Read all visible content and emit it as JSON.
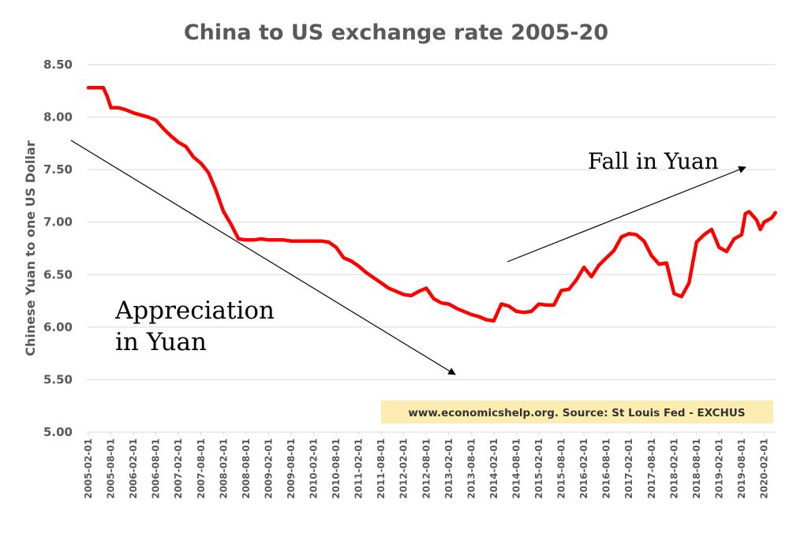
{
  "chart_data": {
    "type": "line",
    "title": "China to US exchange rate 2005-20",
    "ylabel": "Chinese Yuan to one US Dollar",
    "xlabel": "",
    "ylim": [
      5.0,
      8.5
    ],
    "yticks": [
      "5.00",
      "5.50",
      "6.00",
      "6.50",
      "7.00",
      "7.50",
      "8.00",
      "8.50"
    ],
    "xticks": [
      "2005-02-01",
      "2005-08-01",
      "2006-02-01",
      "2006-08-01",
      "2007-02-01",
      "2007-08-01",
      "2008-02-01",
      "2008-08-01",
      "2009-02-01",
      "2009-08-01",
      "2010-02-01",
      "2010-08-01",
      "2011-02-01",
      "2011-08-01",
      "2012-02-01",
      "2012-08-01",
      "2013-02-01",
      "2013-08-01",
      "2014-02-01",
      "2014-08-01",
      "2015-02-01",
      "2015-08-01",
      "2016-02-01",
      "2016-08-01",
      "2017-02-01",
      "2017-08-01",
      "2018-02-01",
      "2018-08-01",
      "2019-02-01",
      "2019-08-01",
      "2020-02-01"
    ],
    "grid": "horizontal",
    "series": [
      {
        "color": "#ff0000",
        "x": [
          "2005-02",
          "2005-04",
          "2005-06",
          "2005-07",
          "2005-08",
          "2005-10",
          "2005-12",
          "2006-02",
          "2006-04",
          "2006-06",
          "2006-08",
          "2006-10",
          "2006-12",
          "2007-02",
          "2007-04",
          "2007-06",
          "2007-08",
          "2007-10",
          "2007-12",
          "2008-02",
          "2008-04",
          "2008-06",
          "2008-08",
          "2008-10",
          "2008-12",
          "2009-02",
          "2009-04",
          "2009-06",
          "2009-08",
          "2009-10",
          "2009-12",
          "2010-02",
          "2010-04",
          "2010-06",
          "2010-08",
          "2010-10",
          "2010-12",
          "2011-02",
          "2011-04",
          "2011-06",
          "2011-08",
          "2011-10",
          "2011-12",
          "2012-02",
          "2012-04",
          "2012-06",
          "2012-08",
          "2012-10",
          "2012-12",
          "2013-02",
          "2013-04",
          "2013-06",
          "2013-08",
          "2013-10",
          "2013-12",
          "2014-02",
          "2014-04",
          "2014-06",
          "2014-08",
          "2014-10",
          "2014-12",
          "2015-02",
          "2015-04",
          "2015-06",
          "2015-08",
          "2015-10",
          "2015-12",
          "2016-02",
          "2016-04",
          "2016-06",
          "2016-08",
          "2016-10",
          "2016-12",
          "2017-02",
          "2017-04",
          "2017-06",
          "2017-08",
          "2017-10",
          "2017-12",
          "2018-02",
          "2018-04",
          "2018-06",
          "2018-08",
          "2018-10",
          "2018-12",
          "2019-02",
          "2019-04",
          "2019-06",
          "2019-08",
          "2019-09",
          "2019-10",
          "2019-12",
          "2020-01",
          "2020-02",
          "2020-04",
          "2020-05"
        ],
        "values": [
          8.28,
          8.28,
          8.28,
          8.2,
          8.09,
          8.09,
          8.07,
          8.04,
          8.02,
          8.0,
          7.97,
          7.89,
          7.82,
          7.76,
          7.72,
          7.62,
          7.56,
          7.47,
          7.3,
          7.1,
          6.98,
          6.84,
          6.83,
          6.83,
          6.84,
          6.83,
          6.83,
          6.83,
          6.82,
          6.82,
          6.82,
          6.82,
          6.82,
          6.81,
          6.76,
          6.66,
          6.63,
          6.58,
          6.52,
          6.47,
          6.42,
          6.37,
          6.34,
          6.31,
          6.3,
          6.34,
          6.37,
          6.27,
          6.23,
          6.22,
          6.18,
          6.15,
          6.12,
          6.1,
          6.07,
          6.06,
          6.22,
          6.2,
          6.15,
          6.14,
          6.15,
          6.22,
          6.21,
          6.21,
          6.35,
          6.36,
          6.45,
          6.57,
          6.48,
          6.59,
          6.66,
          6.73,
          6.86,
          6.89,
          6.88,
          6.82,
          6.68,
          6.6,
          6.61,
          6.32,
          6.29,
          6.42,
          6.81,
          6.88,
          6.93,
          6.76,
          6.72,
          6.84,
          6.88,
          7.08,
          7.1,
          7.02,
          6.93,
          7.0,
          7.04,
          7.09
        ]
      }
    ],
    "annotations": [
      {
        "name": "appreciation",
        "lines": [
          "Appreciation",
          "in Yuan"
        ]
      },
      {
        "name": "fall",
        "lines": [
          "Fall in Yuan"
        ]
      }
    ]
  },
  "source_note": "www.economicshelp.org. Source: St Louis Fed - EXCHUS",
  "colors": {
    "line": "#ff0000",
    "grid": "#d9d9d9",
    "text": "#595959",
    "arrow": "#000000",
    "source_bg": "#fdecb0"
  }
}
